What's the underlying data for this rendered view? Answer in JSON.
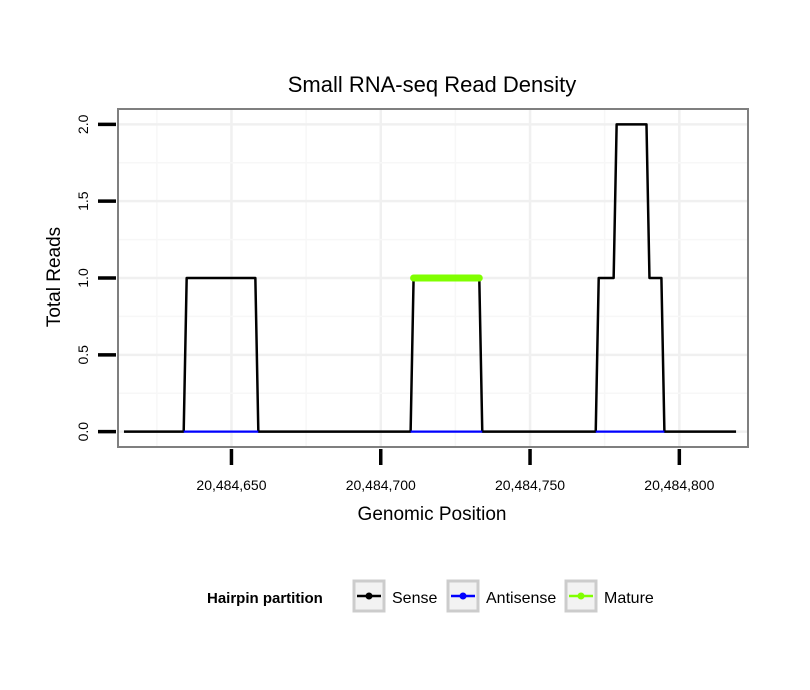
{
  "chart_data": {
    "type": "line",
    "title": "Small RNA-seq Read Density",
    "xlabel": "Genomic Position",
    "ylabel": "Total Reads",
    "xlim": [
      20484612,
      20484823
    ],
    "ylim": [
      -0.1,
      2.1
    ],
    "grid": true,
    "x_ticks": [
      20484650,
      20484700,
      20484750,
      20484800
    ],
    "x_tick_labels": [
      "20,484,650",
      "20,484,700",
      "20,484,750",
      "20,484,800"
    ],
    "y_ticks": [
      0,
      0.5,
      1,
      1.5,
      2
    ],
    "y_tick_labels": [
      "0.0",
      "0.5",
      "1.0",
      "1.5",
      "2.0"
    ],
    "series": [
      {
        "name": "Sense",
        "color": "#000000",
        "x": [
          20484614,
          20484634,
          20484635,
          20484658,
          20484659,
          20484710,
          20484711,
          20484733,
          20484734,
          20484772,
          20484773,
          20484778,
          20484779,
          20484789,
          20484790,
          20484794,
          20484795,
          20484819
        ],
        "y": [
          0,
          0,
          1,
          1,
          0,
          0,
          1,
          1,
          0,
          0,
          1,
          1,
          2,
          2,
          1,
          1,
          0,
          0
        ]
      },
      {
        "name": "Antisense",
        "color": "#0000ff",
        "x": [
          20484634,
          20484659,
          20484710,
          20484734,
          20484772,
          20484795
        ],
        "y": [
          0,
          0,
          0,
          0,
          0,
          0
        ],
        "segments": [
          [
            0,
            1
          ],
          [
            2,
            3
          ],
          [
            4,
            5
          ]
        ]
      },
      {
        "name": "Mature",
        "color": "#80ff00",
        "x": [
          20484711,
          20484733
        ],
        "y": [
          1,
          1
        ]
      }
    ],
    "legend": {
      "title": "Hairpin partition",
      "position": "bottom",
      "entries": [
        "Sense",
        "Antisense",
        "Mature"
      ]
    }
  }
}
